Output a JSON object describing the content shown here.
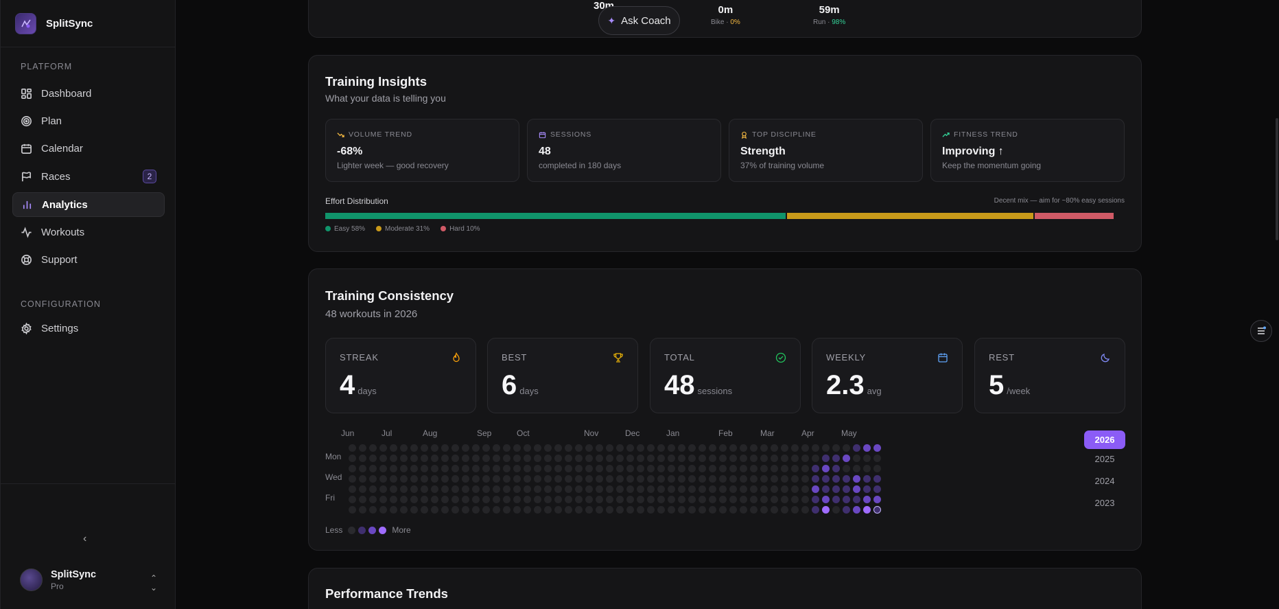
{
  "app": {
    "name": "SplitSync"
  },
  "sidebar": {
    "sections": [
      {
        "label": "PLATFORM",
        "items": [
          {
            "label": "Dashboard",
            "icon": "dashboard-icon"
          },
          {
            "label": "Plan",
            "icon": "target-icon"
          },
          {
            "label": "Calendar",
            "icon": "calendar-icon"
          },
          {
            "label": "Races",
            "icon": "flag-icon",
            "badge": "2"
          },
          {
            "label": "Analytics",
            "icon": "bar-chart-icon",
            "active": true
          },
          {
            "label": "Workouts",
            "icon": "activity-icon"
          },
          {
            "label": "Support",
            "icon": "lifebuoy-icon"
          }
        ]
      },
      {
        "label": "CONFIGURATION",
        "items": [
          {
            "label": "Settings",
            "icon": "gear-icon"
          }
        ]
      }
    ],
    "collapse_icon": "chevron-left-icon",
    "user": {
      "name": "SplitSync",
      "plan": "Pro"
    }
  },
  "top_summary": {
    "stats": [
      {
        "value": "30m",
        "sub": "",
        "sub_value": ""
      },
      {
        "value": "0m",
        "sub": "Bike · ",
        "sub_value": "0%",
        "color": "#f5b942"
      },
      {
        "value": "59m",
        "sub": "Run · ",
        "sub_value": "98%",
        "color": "#34d399"
      }
    ],
    "ask_coach_label": "Ask Coach"
  },
  "insights": {
    "title": "Training Insights",
    "subtitle": "What your data is telling you",
    "cards": [
      {
        "label": "VOLUME TREND",
        "value": "-68%",
        "desc": "Lighter week — good recovery",
        "icon": "trend-down-icon",
        "color": "#f5b942"
      },
      {
        "label": "SESSIONS",
        "value": "48",
        "desc": "completed in 180 days",
        "icon": "calendar-icon",
        "color": "#a78bfa"
      },
      {
        "label": "TOP DISCIPLINE",
        "value": "Strength",
        "desc": "37% of training volume",
        "icon": "award-icon",
        "color": "#f5b942"
      },
      {
        "label": "FITNESS TREND",
        "value": "Improving ↑",
        "desc": "Keep the momentum going",
        "icon": "trend-up-icon",
        "color": "#34d399"
      }
    ],
    "effort": {
      "title": "Effort Distribution",
      "note": "Decent mix — aim for ~80% easy sessions",
      "segments": [
        {
          "label": "Easy 58%",
          "pct": 58,
          "color": "#10946b"
        },
        {
          "label": "Moderate 31%",
          "pct": 31,
          "color": "#c99a1a"
        },
        {
          "label": "Hard 10%",
          "pct": 10,
          "color": "#d05a66"
        }
      ]
    }
  },
  "consistency": {
    "title": "Training Consistency",
    "subtitle": "48 workouts in 2026",
    "stats": [
      {
        "label": "STREAK",
        "value": "4",
        "unit": "days",
        "icon": "flame-icon",
        "color": "#f59e0b"
      },
      {
        "label": "BEST",
        "value": "6",
        "unit": "days",
        "icon": "trophy-icon",
        "color": "#eab308"
      },
      {
        "label": "TOTAL",
        "value": "48",
        "unit": "sessions",
        "icon": "check-circle-icon",
        "color": "#22c55e"
      },
      {
        "label": "WEEKLY",
        "value": "2.3",
        "unit": "avg",
        "icon": "calendar-icon",
        "color": "#60a5fa"
      },
      {
        "label": "REST",
        "value": "5",
        "unit": "/week",
        "icon": "moon-icon",
        "color": "#818cf8"
      }
    ],
    "months": [
      "Jun",
      "Jul",
      "Aug",
      "Sep",
      "Oct",
      "Nov",
      "Dec",
      "Jan",
      "Feb",
      "Mar",
      "Apr",
      "May"
    ],
    "days": [
      "Mon",
      "Wed",
      "Fri"
    ],
    "legend": {
      "less": "Less",
      "more": "More"
    },
    "years": [
      "2026",
      "2025",
      "2024",
      "2023"
    ],
    "selected_year": "2026"
  },
  "performance": {
    "title": "Performance Trends"
  }
}
